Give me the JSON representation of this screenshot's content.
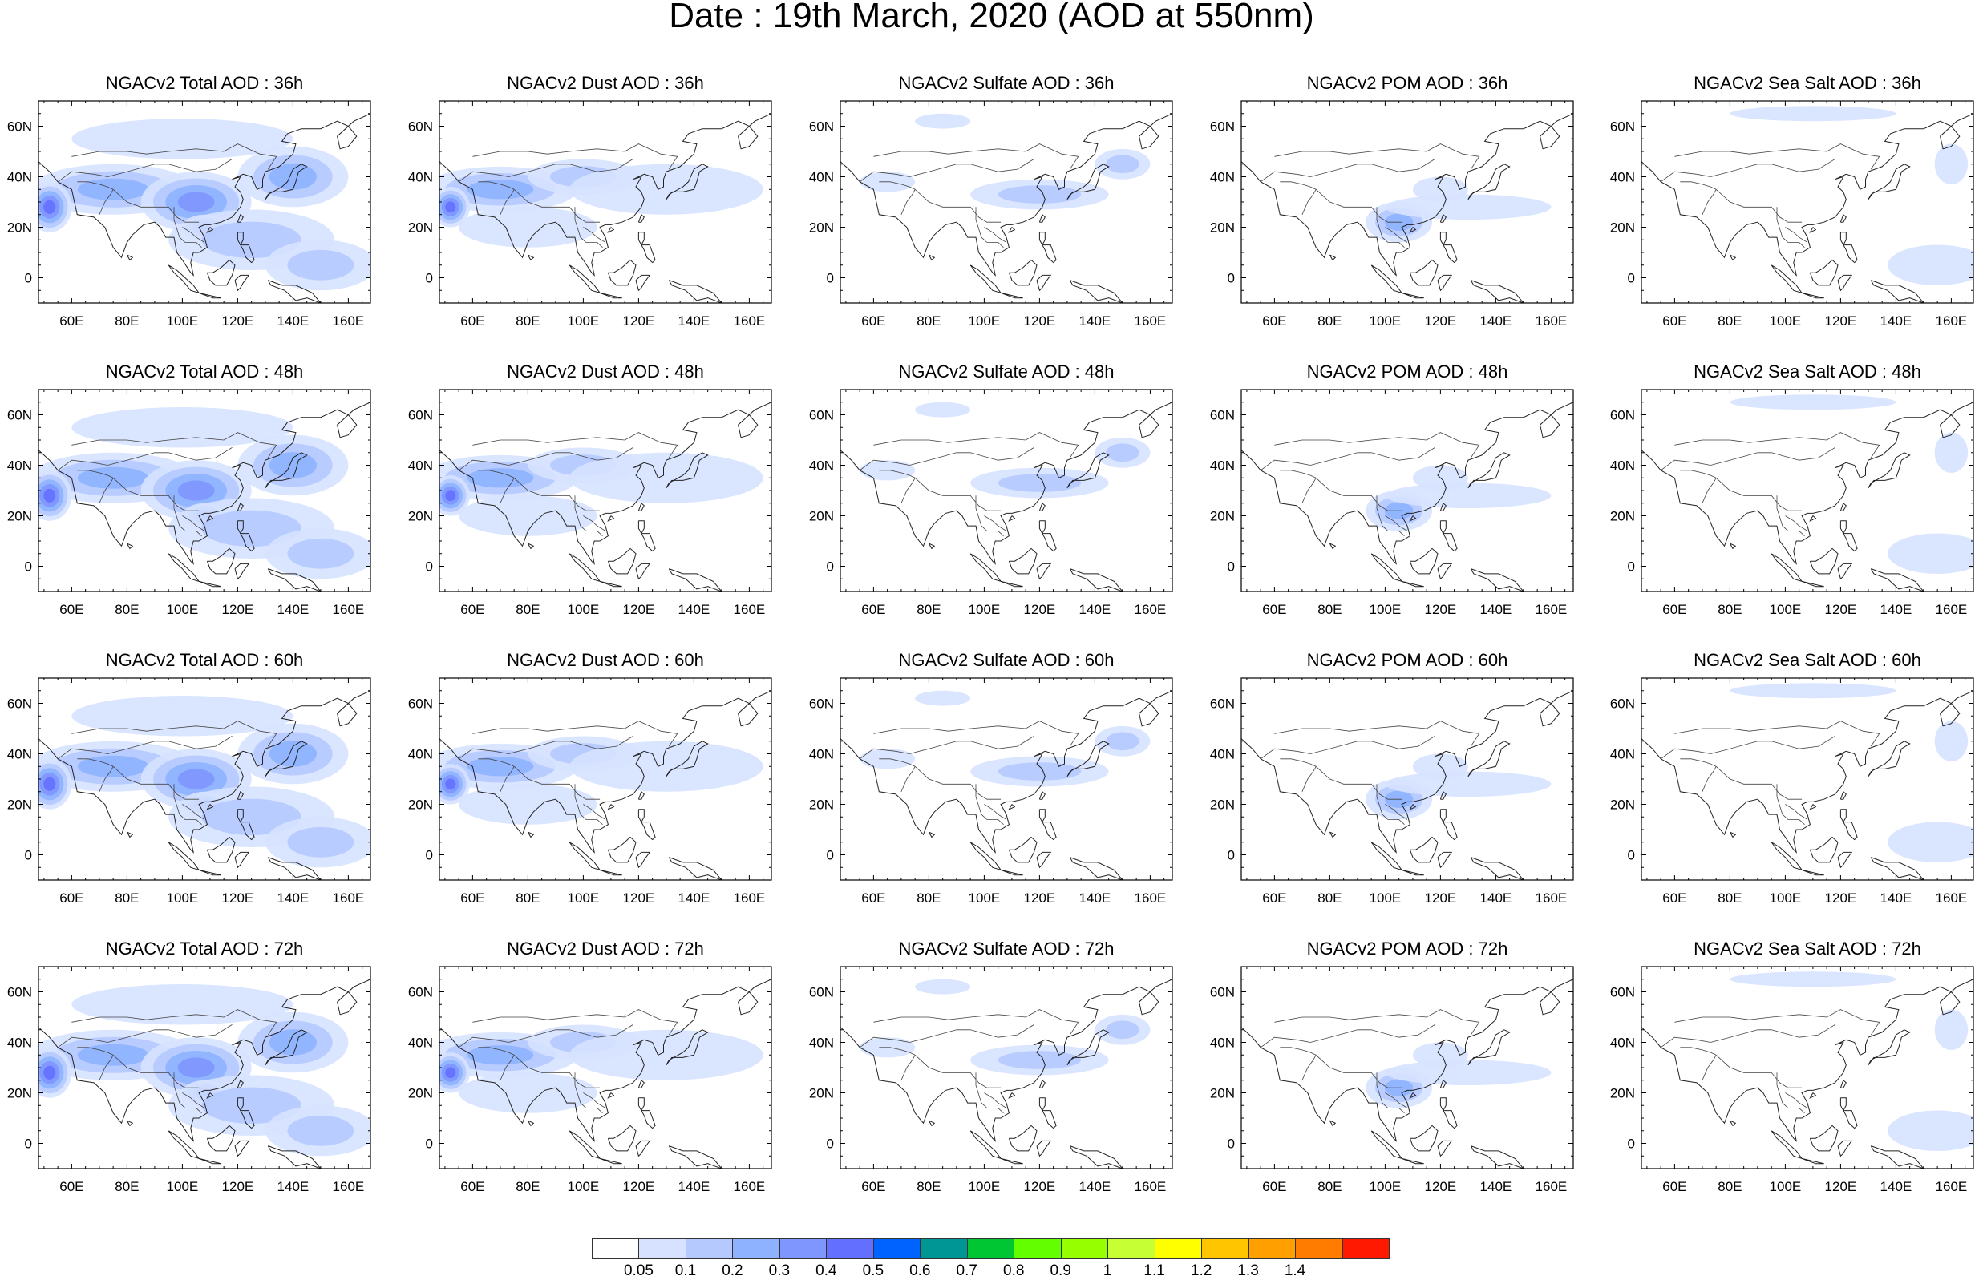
{
  "title": "Date : 19th March, 2020 (AOD at 550nm)",
  "lat_ticks": [
    "60N",
    "40N",
    "20N",
    "0"
  ],
  "lon_ticks": [
    "60E",
    "80E",
    "100E",
    "120E",
    "140E",
    "160E"
  ],
  "lon_values": [
    60,
    80,
    100,
    120,
    140,
    160
  ],
  "lat_values": [
    60,
    40,
    20,
    0
  ],
  "lon_range": [
    48,
    168
  ],
  "lat_range": [
    -10,
    70
  ],
  "panels": [
    {
      "title": "NGACv2 Total AOD : 36h",
      "species": "total",
      "hour": 36
    },
    {
      "title": "NGACv2 Dust AOD : 36h",
      "species": "dust",
      "hour": 36
    },
    {
      "title": "NGACv2 Sulfate AOD : 36h",
      "species": "sulfate",
      "hour": 36
    },
    {
      "title": "NGACv2 POM AOD : 36h",
      "species": "pom",
      "hour": 36
    },
    {
      "title": "NGACv2 Sea Salt AOD : 36h",
      "species": "seasalt",
      "hour": 36
    },
    {
      "title": "NGACv2 Total AOD : 48h",
      "species": "total",
      "hour": 48
    },
    {
      "title": "NGACv2 Dust AOD : 48h",
      "species": "dust",
      "hour": 48
    },
    {
      "title": "NGACv2 Sulfate AOD : 48h",
      "species": "sulfate",
      "hour": 48
    },
    {
      "title": "NGACv2 POM AOD : 48h",
      "species": "pom",
      "hour": 48
    },
    {
      "title": "NGACv2 Sea Salt AOD : 48h",
      "species": "seasalt",
      "hour": 48
    },
    {
      "title": "NGACv2 Total AOD : 60h",
      "species": "total",
      "hour": 60
    },
    {
      "title": "NGACv2 Dust AOD : 60h",
      "species": "dust",
      "hour": 60
    },
    {
      "title": "NGACv2 Sulfate AOD : 60h",
      "species": "sulfate",
      "hour": 60
    },
    {
      "title": "NGACv2 POM AOD : 60h",
      "species": "pom",
      "hour": 60
    },
    {
      "title": "NGACv2 Sea Salt AOD : 60h",
      "species": "seasalt",
      "hour": 60
    },
    {
      "title": "NGACv2 Total AOD : 72h",
      "species": "total",
      "hour": 72
    },
    {
      "title": "NGACv2 Dust AOD : 72h",
      "species": "dust",
      "hour": 72
    },
    {
      "title": "NGACv2 Sulfate AOD : 72h",
      "species": "sulfate",
      "hour": 72
    },
    {
      "title": "NGACv2 POM AOD : 72h",
      "species": "pom",
      "hour": 72
    },
    {
      "title": "NGACv2 Sea Salt  AOD : 72h",
      "species": "seasalt",
      "hour": 72
    }
  ],
  "colorbar": {
    "labels": [
      "0.05",
      "0.1",
      "0.2",
      "0.3",
      "0.4",
      "0.5",
      "0.6",
      "0.7",
      "0.8",
      "0.9",
      "1",
      "1.1",
      "1.2",
      "1.3",
      "1.4"
    ],
    "colors": [
      "#ffffff",
      "#d6e2ff",
      "#b5c9ff",
      "#8eb2ff",
      "#7f96ff",
      "#6370ff",
      "#0063ff",
      "#009696",
      "#00c633",
      "#63ff00",
      "#96ff00",
      "#c6ff33",
      "#ffff00",
      "#ffc600",
      "#ffa000",
      "#ff7c00",
      "#ff1900"
    ]
  },
  "plumes": {
    "total": [
      {
        "lon": 75,
        "lat": 35,
        "rx": 30,
        "ry": 10,
        "level": 3
      },
      {
        "lon": 52,
        "lat": 28,
        "rx": 8,
        "ry": 10,
        "level": 5
      },
      {
        "lon": 105,
        "lat": 30,
        "rx": 20,
        "ry": 12,
        "level": 4
      },
      {
        "lon": 108,
        "lat": 20,
        "rx": 8,
        "ry": 5,
        "level": 6
      },
      {
        "lon": 140,
        "lat": 40,
        "rx": 20,
        "ry": 12,
        "level": 3
      },
      {
        "lon": 125,
        "lat": 15,
        "rx": 30,
        "ry": 12,
        "level": 2
      },
      {
        "lon": 100,
        "lat": 55,
        "rx": 40,
        "ry": 8,
        "level": 1
      },
      {
        "lon": 150,
        "lat": 5,
        "rx": 20,
        "ry": 10,
        "level": 2
      }
    ],
    "dust": [
      {
        "lon": 70,
        "lat": 35,
        "rx": 28,
        "ry": 9,
        "level": 3
      },
      {
        "lon": 52,
        "lat": 28,
        "rx": 7,
        "ry": 8,
        "level": 5
      },
      {
        "lon": 100,
        "lat": 40,
        "rx": 20,
        "ry": 7,
        "level": 2
      },
      {
        "lon": 130,
        "lat": 35,
        "rx": 35,
        "ry": 10,
        "level": 1
      },
      {
        "lon": 80,
        "lat": 20,
        "rx": 25,
        "ry": 8,
        "level": 1
      }
    ],
    "sulfate": [
      {
        "lon": 120,
        "lat": 33,
        "rx": 25,
        "ry": 6,
        "level": 2
      },
      {
        "lon": 150,
        "lat": 45,
        "rx": 10,
        "ry": 6,
        "level": 2
      },
      {
        "lon": 65,
        "lat": 38,
        "rx": 10,
        "ry": 4,
        "level": 1
      },
      {
        "lon": 85,
        "lat": 62,
        "rx": 10,
        "ry": 3,
        "level": 1
      }
    ],
    "pom": [
      {
        "lon": 105,
        "lat": 22,
        "rx": 12,
        "ry": 8,
        "level": 3
      },
      {
        "lon": 130,
        "lat": 28,
        "rx": 30,
        "ry": 5,
        "level": 1
      },
      {
        "lon": 120,
        "lat": 35,
        "rx": 10,
        "ry": 5,
        "level": 1
      }
    ],
    "seasalt": [
      {
        "lon": 155,
        "lat": 5,
        "rx": 18,
        "ry": 8,
        "level": 1
      },
      {
        "lon": 160,
        "lat": 45,
        "rx": 6,
        "ry": 8,
        "level": 1
      },
      {
        "lon": 110,
        "lat": 65,
        "rx": 30,
        "ry": 3,
        "level": 1
      }
    ]
  }
}
